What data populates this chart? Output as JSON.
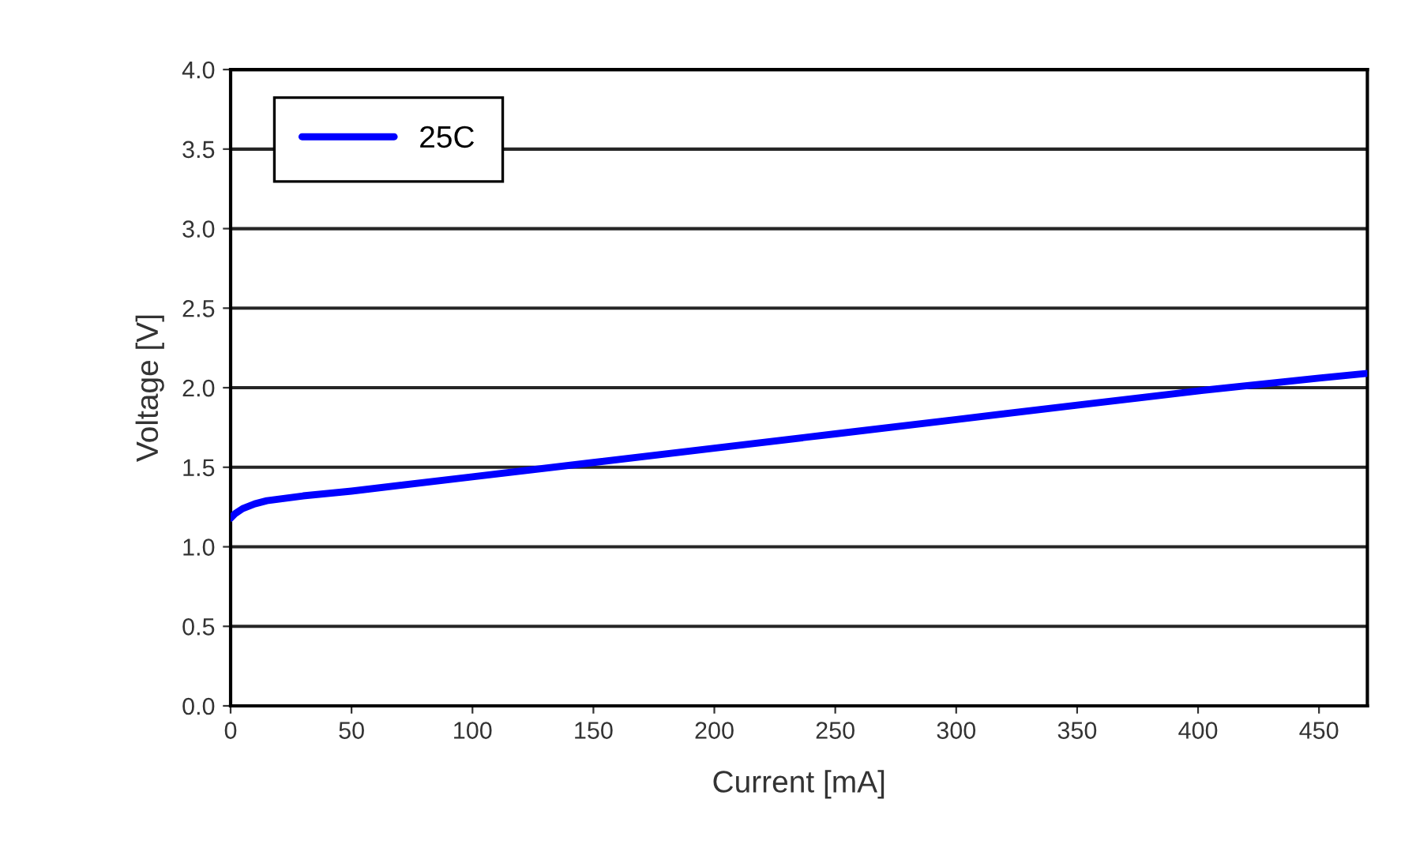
{
  "chart_data": {
    "type": "line",
    "xlabel": "Current [mA]",
    "ylabel": "Voltage [V]",
    "xlim": [
      0,
      470
    ],
    "ylim": [
      0,
      4.0
    ],
    "xticks": [
      0,
      50,
      100,
      150,
      200,
      250,
      300,
      350,
      400,
      450
    ],
    "yticks": [
      {
        "value": 0,
        "label": "0.0"
      },
      {
        "value": 0.5,
        "label": "0.5"
      },
      {
        "value": 1.0,
        "label": "1.0"
      },
      {
        "value": 1.5,
        "label": "1.5"
      },
      {
        "value": 2.0,
        "label": "2.0"
      },
      {
        "value": 2.5,
        "label": "2.5"
      },
      {
        "value": 3.0,
        "label": "3.0"
      },
      {
        "value": 3.5,
        "label": "3.5"
      },
      {
        "value": 4.0,
        "label": "4.0"
      }
    ],
    "grid": "y",
    "legend": "top left",
    "marker": "none",
    "line_style": "solid",
    "series": [
      {
        "name": "25C",
        "color": "#0000ff",
        "x": [
          0,
          2,
          5,
          10,
          15,
          20,
          30,
          50,
          100,
          150,
          200,
          250,
          300,
          350,
          400,
          450,
          470
        ],
        "values": [
          1.18,
          1.21,
          1.24,
          1.27,
          1.29,
          1.3,
          1.32,
          1.35,
          1.44,
          1.53,
          1.62,
          1.71,
          1.8,
          1.89,
          1.98,
          2.06,
          2.09
        ]
      }
    ]
  }
}
